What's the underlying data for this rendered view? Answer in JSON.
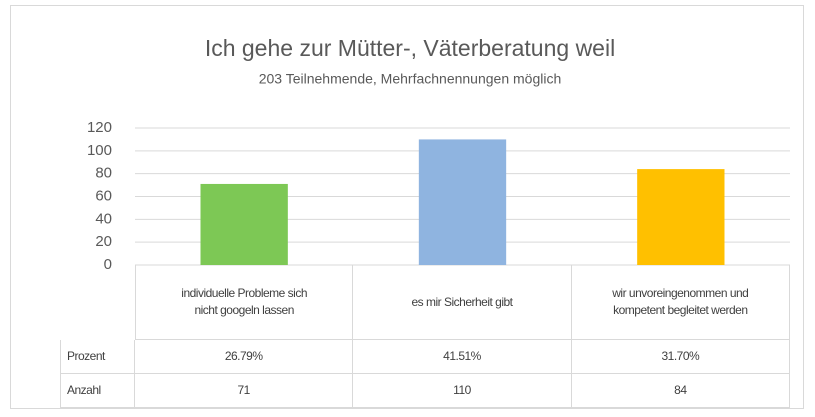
{
  "chart_data": {
    "type": "bar",
    "title": "Ich gehe zur Mütter-, Väterberatung weil",
    "subtitle": "203 Teilnehmende, Mehrfachnennungen möglich",
    "categories": [
      "individuelle Probleme sich nicht googeln lassen",
      "es mir Sicherheit gibt",
      "wir unvoreingenommen und kompetent begleitet werden"
    ],
    "values": [
      71,
      110,
      84
    ],
    "colors": [
      "#7dc855",
      "#8fb4e0",
      "#ffc000"
    ],
    "ylim": [
      0,
      120
    ],
    "yticks": [
      0,
      20,
      40,
      60,
      80,
      100,
      120
    ],
    "grid": true,
    "data_table": {
      "rows": [
        {
          "name": "Prozent",
          "cells": [
            "26.79%",
            "41.51%",
            "31.70%"
          ]
        },
        {
          "name": "Anzahl"
        }
      ]
    }
  }
}
